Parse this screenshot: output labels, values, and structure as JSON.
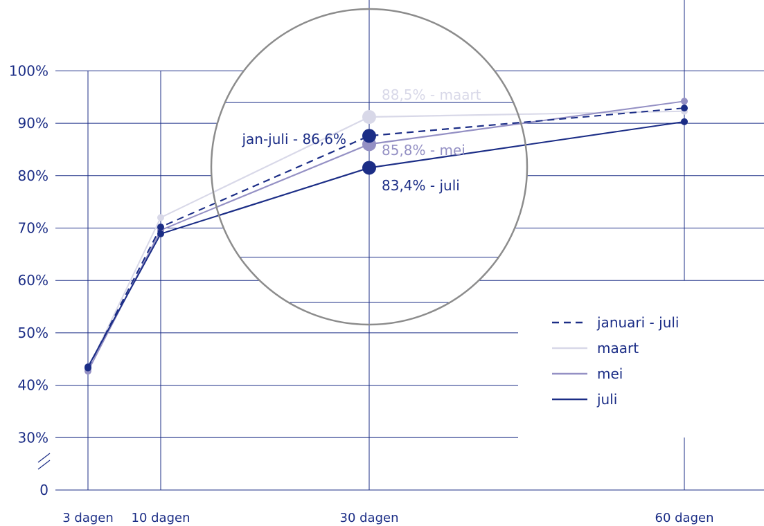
{
  "chart_data": {
    "type": "line",
    "categories": [
      "3 dagen",
      "10 dagen",
      "30 dagen",
      "60 dagen"
    ],
    "y_ticks": [
      "0",
      "30%",
      "40%",
      "50%",
      "60%",
      "70%",
      "80%",
      "90%",
      "100%"
    ],
    "ylim": [
      30,
      100
    ],
    "y_axis_break": true,
    "grid": true,
    "legend_position": "right",
    "series": [
      {
        "key": "jan",
        "name": "januari - juli",
        "color": "#1b2d86",
        "dashed": true,
        "values": [
          43.3,
          70.2,
          87.6,
          92.9
        ]
      },
      {
        "key": "maart",
        "name": "maart",
        "color": "#d8d8e8",
        "dashed": false,
        "values": [
          43.1,
          72.0,
          91.2,
          92.3
        ]
      },
      {
        "key": "mei",
        "name": "mei",
        "color": "#9490c4",
        "dashed": false,
        "values": [
          42.7,
          69.6,
          86.0,
          94.2
        ]
      },
      {
        "key": "juli",
        "name": "juli",
        "color": "#1b2d86",
        "dashed": false,
        "values": [
          43.5,
          68.9,
          81.5,
          90.3
        ]
      }
    ],
    "annotations": {
      "jan": "jan-juli - 86,6%",
      "maart": "88,5% - maart",
      "mei": "85,8% - mei",
      "juli": "83,4% - juli"
    }
  }
}
